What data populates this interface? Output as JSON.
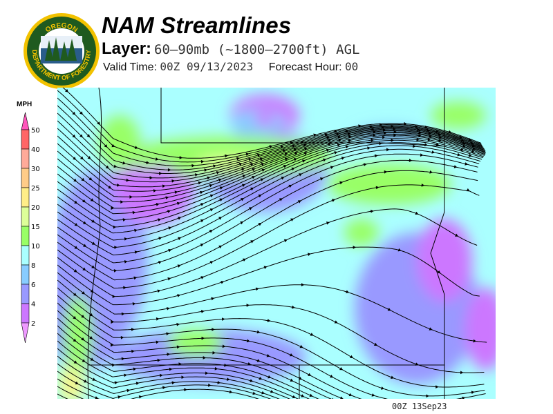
{
  "header": {
    "title": "NAM Streamlines",
    "layer_label": "Layer:",
    "layer_value": "60–90mb (~1800–2700ft) AGL",
    "valid_time_label": "Valid Time:",
    "valid_time_value": "00Z 09/13/2023",
    "forecast_hour_label": "Forecast Hour:",
    "forecast_hour_value": "00"
  },
  "logo": {
    "top_text": "OREGON",
    "bottom_text": "DEPARTMENT OF FORESTRY"
  },
  "colorbar": {
    "unit": "MPH",
    "levels": [
      "50",
      "40",
      "30",
      "25",
      "20",
      "15",
      "10",
      "8",
      "6",
      "4",
      "2"
    ],
    "colors": [
      "#ff6666",
      "#ffaa99",
      "#ffcc88",
      "#ffee88",
      "#ddff99",
      "#99ff66",
      "#aaffff",
      "#88ccff",
      "#9999ff",
      "#cc77ff"
    ],
    "top_arrow_color": "#ff55bb",
    "bottom_arrow_color": "#ee99ff"
  },
  "map": {
    "background_color": "#aaffff",
    "streamline_color": "#000000"
  },
  "footer": {
    "stamp": "00Z 13Sep23"
  }
}
